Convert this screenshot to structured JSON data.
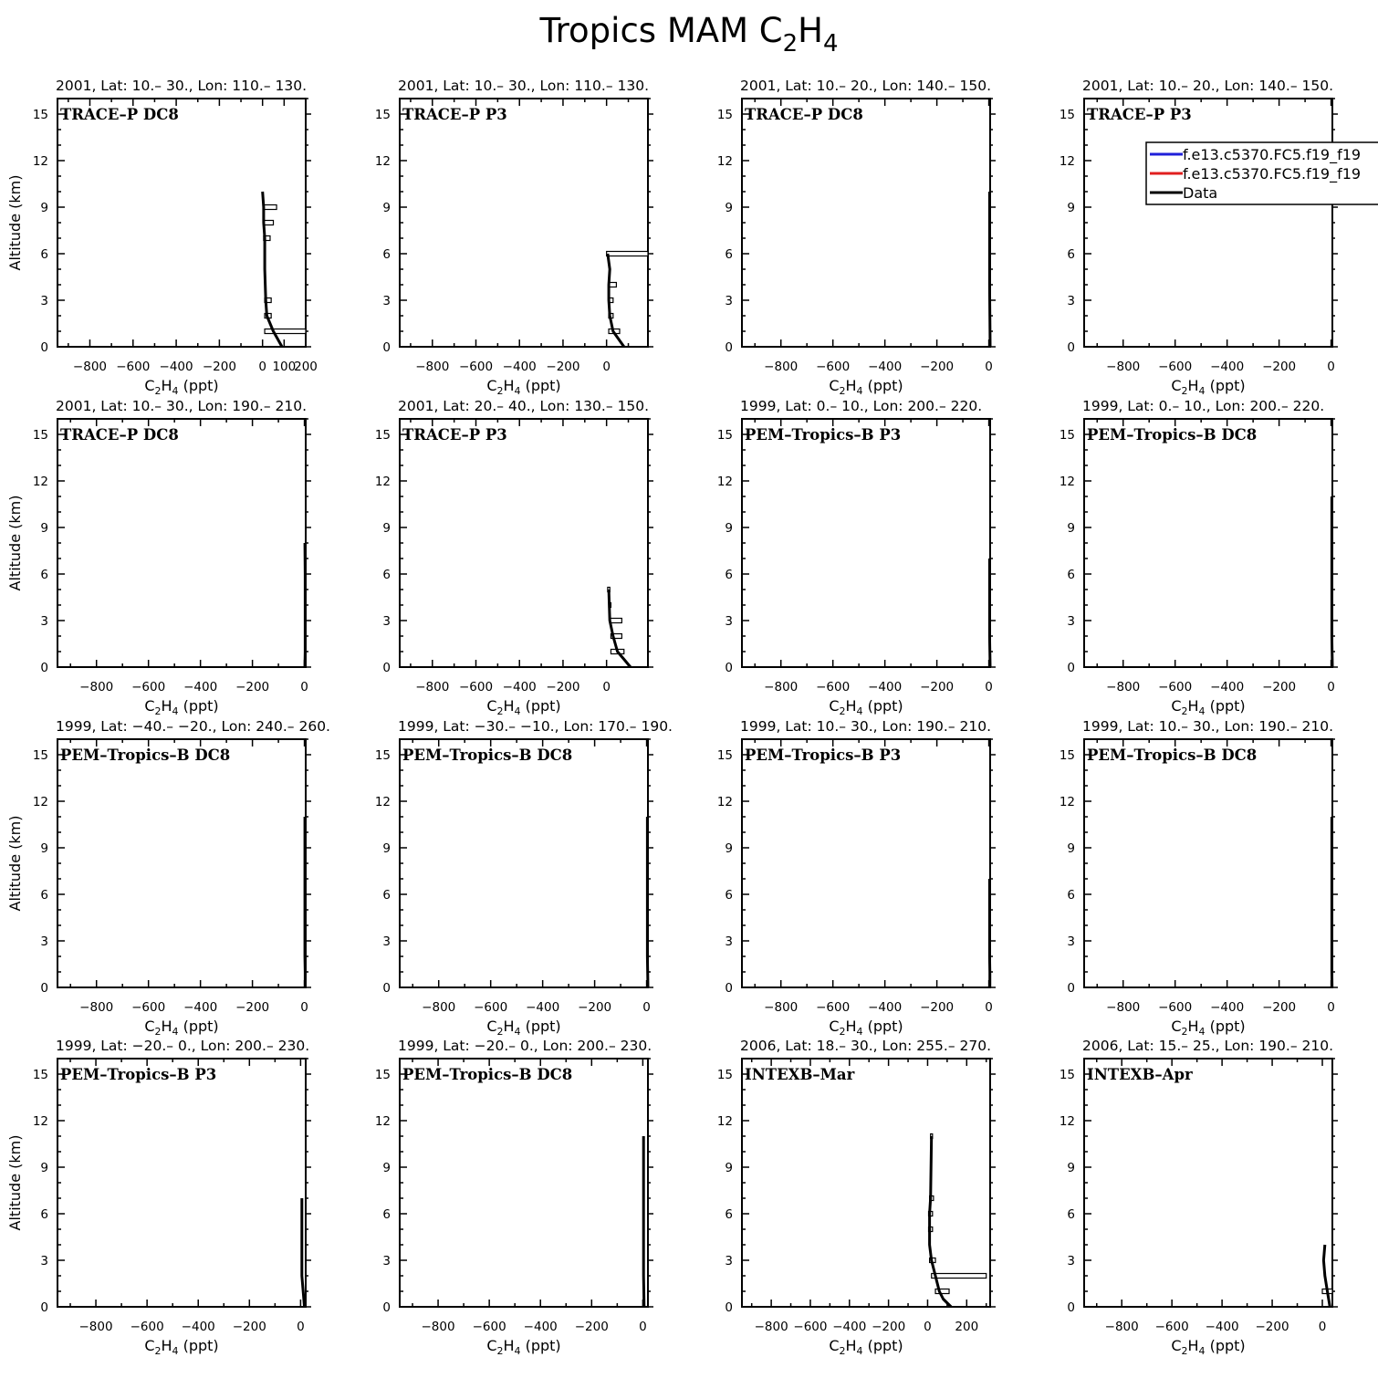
{
  "figure": {
    "title": {
      "main": "Tropics MAM C",
      "sub1": "2",
      "mid": "H",
      "sub2": "4"
    }
  },
  "legend": {
    "entries": [
      {
        "label": "f.e13.c5370.FC5.f19_f19",
        "color": "#1f1fd9"
      },
      {
        "label": "f.e13.c5370.FC5.f19_f19",
        "color": "#e01f1f"
      },
      {
        "label": "Data",
        "color": "#000000"
      }
    ]
  },
  "colors": {
    "data": "#000000",
    "axes": "#000000"
  },
  "chart_data": [
    {
      "type": "line",
      "title": "2001, Lat: 10.– 30., Lon: 110.– 130.",
      "campaign": "TRACE–P DC8",
      "xlabel": {
        "main": "C",
        "sub1": "2",
        "mid": "H",
        "sub2": "4",
        "unit": " (ppt)"
      },
      "ylabel": "Altitude (km)",
      "xlim": [
        -950,
        200
      ],
      "ylim": [
        0,
        16
      ],
      "xticks": [
        -800,
        -600,
        -400,
        -200,
        0,
        100,
        200
      ],
      "xticklabels": [
        "−800",
        "−600",
        "−400",
        "−200",
        "0",
        "100",
        "200"
      ],
      "yticks": [
        0,
        3,
        6,
        9,
        12,
        15
      ],
      "series": [
        {
          "name": "Data",
          "x": [
            90,
            70,
            50,
            20,
            15,
            10,
            10,
            10,
            5,
            5,
            0
          ],
          "y": [
            0,
            0.5,
            1,
            2,
            3,
            5,
            6,
            7,
            8,
            9,
            10
          ]
        }
      ],
      "bars": [
        {
          "y": 1,
          "min": 10,
          "max": 200
        },
        {
          "y": 2,
          "min": 10,
          "max": 40
        },
        {
          "y": 3,
          "min": 10,
          "max": 40
        },
        {
          "y": 7,
          "min": 5,
          "max": 35
        },
        {
          "y": 8,
          "min": 5,
          "max": 50
        },
        {
          "y": 9,
          "min": 5,
          "max": 65
        }
      ]
    },
    {
      "type": "line",
      "title": "2001, Lat: 10.– 30., Lon: 110.– 130.",
      "campaign": "TRACE–P P3",
      "xlabel": {
        "main": "C",
        "sub1": "2",
        "mid": "H",
        "sub2": "4",
        "unit": " (ppt)"
      },
      "ylabel": "",
      "xlim": [
        -950,
        190
      ],
      "ylim": [
        0,
        16
      ],
      "xticks": [
        -800,
        -600,
        -400,
        -200,
        0
      ],
      "xticklabels": [
        "−800",
        "−600",
        "−400",
        "−200",
        "0"
      ],
      "yticks": [
        0,
        3,
        6,
        9,
        12,
        15
      ],
      "series": [
        {
          "name": "Data",
          "x": [
            80,
            55,
            30,
            15,
            10,
            10,
            15,
            5
          ],
          "y": [
            0,
            0.5,
            1,
            2,
            3,
            4,
            5,
            6
          ]
        }
      ],
      "bars": [
        {
          "y": 1,
          "min": 10,
          "max": 60
        },
        {
          "y": 2,
          "min": 10,
          "max": 30
        },
        {
          "y": 3,
          "min": 10,
          "max": 30
        },
        {
          "y": 4,
          "min": 10,
          "max": 45
        },
        {
          "y": 6,
          "min": 0,
          "max": 190
        }
      ]
    },
    {
      "type": "line",
      "title": "2001, Lat: 10.– 20., Lon: 140.– 150.",
      "campaign": "TRACE–P DC8",
      "xlabel": {
        "main": "C",
        "sub1": "2",
        "mid": "H",
        "sub2": "4",
        "unit": " (ppt)"
      },
      "ylabel": "",
      "xlim": [
        -950,
        5
      ],
      "ylim": [
        0,
        16
      ],
      "xticks": [
        -800,
        -600,
        -400,
        -200,
        0
      ],
      "xticklabels": [
        "−800",
        "−600",
        "−400",
        "−200",
        "0"
      ],
      "yticks": [
        0,
        3,
        6,
        9,
        12,
        15
      ],
      "series": [
        {
          "name": "Data",
          "x": [
            5,
            4,
            3,
            3,
            3,
            3,
            3
          ],
          "y": [
            0,
            2,
            4,
            6,
            8,
            9,
            10
          ]
        }
      ],
      "bars": []
    },
    {
      "type": "line",
      "title": "2001, Lat: 10.– 20., Lon: 140.– 150.",
      "campaign": "TRACE–P P3",
      "xlabel": {
        "main": "C",
        "sub1": "2",
        "mid": "H",
        "sub2": "4",
        "unit": " (ppt)"
      },
      "ylabel": "",
      "xlim": [
        -950,
        5
      ],
      "ylim": [
        0,
        16
      ],
      "xticks": [
        -800,
        -600,
        -400,
        -200,
        0
      ],
      "xticklabels": [
        "−800",
        "−600",
        "−400",
        "−200",
        "0"
      ],
      "yticks": [
        0,
        3,
        6,
        9,
        12,
        15
      ],
      "series": [],
      "bars": [],
      "has_legend": true
    },
    {
      "type": "line",
      "title": "2001, Lat: 10.– 30., Lon: 190.– 210.",
      "campaign": "TRACE–P DC8",
      "xlabel": {
        "main": "C",
        "sub1": "2",
        "mid": "H",
        "sub2": "4",
        "unit": " (ppt)"
      },
      "ylabel": "Altitude (km)",
      "xlim": [
        -950,
        5
      ],
      "ylim": [
        0,
        16
      ],
      "xticks": [
        -800,
        -600,
        -400,
        -200,
        0
      ],
      "xticklabels": [
        "−800",
        "−600",
        "−400",
        "−200",
        "0"
      ],
      "yticks": [
        0,
        3,
        6,
        9,
        12,
        15
      ],
      "series": [
        {
          "name": "Data",
          "x": [
            2,
            3,
            3,
            3,
            3,
            3,
            3,
            2
          ],
          "y": [
            0,
            1,
            2,
            3,
            4,
            5,
            6,
            8
          ]
        }
      ],
      "bars": []
    },
    {
      "type": "line",
      "title": "2001, Lat: 20.– 40., Lon: 130.– 150.",
      "campaign": "TRACE–P P3",
      "xlabel": {
        "main": "C",
        "sub1": "2",
        "mid": "H",
        "sub2": "4",
        "unit": " (ppt)"
      },
      "ylabel": "",
      "xlim": [
        -950,
        190
      ],
      "ylim": [
        0,
        16
      ],
      "xticks": [
        -800,
        -600,
        -400,
        -200,
        0
      ],
      "xticklabels": [
        "−800",
        "−600",
        "−400",
        "−200",
        "0"
      ],
      "yticks": [
        0,
        3,
        6,
        9,
        12,
        15
      ],
      "series": [
        {
          "name": "Data",
          "x": [
            110,
            80,
            50,
            30,
            15,
            10
          ],
          "y": [
            0,
            0.5,
            1,
            2,
            3,
            5
          ]
        }
      ],
      "bars": [
        {
          "y": 1,
          "min": 20,
          "max": 80
        },
        {
          "y": 2,
          "min": 20,
          "max": 70
        },
        {
          "y": 3,
          "min": 15,
          "max": 70
        },
        {
          "y": 4,
          "min": 10,
          "max": 20
        },
        {
          "y": 5,
          "min": 5,
          "max": 15
        }
      ]
    },
    {
      "type": "line",
      "title": "1999, Lat: 0.– 10., Lon: 200.– 220.",
      "campaign": "PEM–Tropics–B P3",
      "xlabel": {
        "main": "C",
        "sub1": "2",
        "mid": "H",
        "sub2": "4",
        "unit": " (ppt)"
      },
      "ylabel": "",
      "xlim": [
        -950,
        5
      ],
      "ylim": [
        0,
        16
      ],
      "xticks": [
        -800,
        -600,
        -400,
        -200,
        0
      ],
      "xticklabels": [
        "−800",
        "−600",
        "−400",
        "−200",
        "0"
      ],
      "yticks": [
        0,
        3,
        6,
        9,
        12,
        15
      ],
      "series": [
        {
          "name": "Data",
          "x": [
            5,
            4,
            3,
            3,
            3,
            3,
            3,
            3
          ],
          "y": [
            0,
            1,
            2,
            3,
            4,
            5,
            6,
            7
          ]
        }
      ],
      "bars": []
    },
    {
      "type": "line",
      "title": "1999, Lat: 0.– 10., Lon: 200.– 220.",
      "campaign": "PEM–Tropics–B DC8",
      "xlabel": {
        "main": "C",
        "sub1": "2",
        "mid": "H",
        "sub2": "4",
        "unit": " (ppt)"
      },
      "ylabel": "",
      "xlim": [
        -950,
        5
      ],
      "ylim": [
        0,
        16
      ],
      "xticks": [
        -800,
        -600,
        -400,
        -200,
        0
      ],
      "xticklabels": [
        "−800",
        "−600",
        "−400",
        "−200",
        "0"
      ],
      "yticks": [
        0,
        3,
        6,
        9,
        12,
        15
      ],
      "series": [
        {
          "name": "Data",
          "x": [
            5,
            4,
            3,
            3,
            3,
            3,
            3,
            3,
            3,
            3,
            3
          ],
          "y": [
            0,
            1,
            2,
            3,
            4,
            5,
            6,
            7,
            8,
            9,
            11
          ]
        }
      ],
      "bars": []
    },
    {
      "type": "line",
      "title": "1999, Lat: −40.– −20., Lon: 240.– 260.",
      "campaign": "PEM–Tropics–B DC8",
      "xlabel": {
        "main": "C",
        "sub1": "2",
        "mid": "H",
        "sub2": "4",
        "unit": " (ppt)"
      },
      "ylabel": "Altitude (km)",
      "xlim": [
        -950,
        5
      ],
      "ylim": [
        0,
        16
      ],
      "xticks": [
        -800,
        -600,
        -400,
        -200,
        0
      ],
      "xticklabels": [
        "−800",
        "−600",
        "−400",
        "−200",
        "0"
      ],
      "yticks": [
        0,
        3,
        6,
        9,
        12,
        15
      ],
      "series": [
        {
          "name": "Data",
          "x": [
            3,
            3,
            2,
            2,
            2,
            2,
            2,
            2,
            2,
            2,
            2
          ],
          "y": [
            0,
            1,
            2,
            3,
            4,
            5,
            6,
            7,
            8,
            9,
            11
          ]
        }
      ],
      "bars": []
    },
    {
      "type": "line",
      "title": "1999, Lat: −30.– −10., Lon: 170.– 190.",
      "campaign": "PEM–Tropics–B DC8",
      "xlabel": {
        "main": "C",
        "sub1": "2",
        "mid": "H",
        "sub2": "4",
        "unit": " (ppt)"
      },
      "ylabel": "",
      "xlim": [
        -950,
        5
      ],
      "ylim": [
        0,
        16
      ],
      "xticks": [
        -800,
        -600,
        -400,
        -200,
        0
      ],
      "xticklabels": [
        "−800",
        "−600",
        "−400",
        "−200",
        "0"
      ],
      "yticks": [
        0,
        3,
        6,
        9,
        12,
        15
      ],
      "series": [
        {
          "name": "Data",
          "x": [
            5,
            4,
            3,
            3,
            3,
            3,
            3,
            3,
            3,
            3,
            3
          ],
          "y": [
            0,
            1,
            2,
            3,
            4,
            5,
            6,
            7,
            8,
            9,
            11
          ]
        }
      ],
      "bars": []
    },
    {
      "type": "line",
      "title": "1999, Lat: 10.– 30., Lon: 190.– 210.",
      "campaign": "PEM–Tropics–B P3",
      "xlabel": {
        "main": "C",
        "sub1": "2",
        "mid": "H",
        "sub2": "4",
        "unit": " (ppt)"
      },
      "ylabel": "",
      "xlim": [
        -950,
        5
      ],
      "ylim": [
        0,
        16
      ],
      "xticks": [
        -800,
        -600,
        -400,
        -200,
        0
      ],
      "xticklabels": [
        "−800",
        "−600",
        "−400",
        "−200",
        "0"
      ],
      "yticks": [
        0,
        3,
        6,
        9,
        12,
        15
      ],
      "series": [
        {
          "name": "Data",
          "x": [
            4,
            4,
            3,
            3,
            3,
            3,
            3,
            3
          ],
          "y": [
            0,
            1,
            2,
            3,
            4,
            5,
            6,
            7
          ]
        }
      ],
      "bars": []
    },
    {
      "type": "line",
      "title": "1999, Lat: 10.– 30., Lon: 190.– 210.",
      "campaign": "PEM–Tropics–B DC8",
      "xlabel": {
        "main": "C",
        "sub1": "2",
        "mid": "H",
        "sub2": "4",
        "unit": " (ppt)"
      },
      "ylabel": "",
      "xlim": [
        -950,
        5
      ],
      "ylim": [
        0,
        16
      ],
      "xticks": [
        -800,
        -600,
        -400,
        -200,
        0
      ],
      "xticklabels": [
        "−800",
        "−600",
        "−400",
        "−200",
        "0"
      ],
      "yticks": [
        0,
        3,
        6,
        9,
        12,
        15
      ],
      "series": [
        {
          "name": "Data",
          "x": [
            4,
            3,
            3,
            3,
            3,
            3,
            3,
            3,
            3,
            3,
            3
          ],
          "y": [
            0,
            1,
            2,
            3,
            4,
            5,
            6,
            7,
            8,
            9,
            11
          ]
        }
      ],
      "bars": []
    },
    {
      "type": "line",
      "title": "1999, Lat: −20.– 0., Lon: 200.– 230.",
      "campaign": "PEM–Tropics–B P3",
      "xlabel": {
        "main": "C",
        "sub1": "2",
        "mid": "H",
        "sub2": "4",
        "unit": " (ppt)"
      },
      "ylabel": "Altitude (km)",
      "xlim": [
        -950,
        20
      ],
      "ylim": [
        0,
        16
      ],
      "xticks": [
        -800,
        -600,
        -400,
        -200,
        0
      ],
      "xticklabels": [
        "−800",
        "−600",
        "−400",
        "−200",
        "0"
      ],
      "yticks": [
        0,
        3,
        6,
        9,
        12,
        15
      ],
      "series": [
        {
          "name": "Data",
          "x": [
            15,
            10,
            5,
            5,
            5,
            5,
            5,
            5
          ],
          "y": [
            0,
            1,
            2,
            3,
            4,
            5,
            6,
            7
          ]
        }
      ],
      "bars": []
    },
    {
      "type": "line",
      "title": "1999, Lat: −20.– 0., Lon: 200.– 230.",
      "campaign": "PEM–Tropics–B DC8",
      "xlabel": {
        "main": "C",
        "sub1": "2",
        "mid": "H",
        "sub2": "4",
        "unit": " (ppt)"
      },
      "ylabel": "",
      "xlim": [
        -950,
        20
      ],
      "ylim": [
        0,
        16
      ],
      "xticks": [
        -800,
        -600,
        -400,
        -200,
        0
      ],
      "xticklabels": [
        "−800",
        "−600",
        "−400",
        "−200",
        "0"
      ],
      "yticks": [
        0,
        3,
        6,
        9,
        12,
        15
      ],
      "series": [
        {
          "name": "Data",
          "x": [
            5,
            4,
            3,
            3,
            3,
            3,
            3,
            3,
            3,
            3,
            3
          ],
          "y": [
            0,
            1,
            2,
            3,
            4,
            5,
            6,
            7,
            8,
            9,
            11
          ]
        }
      ],
      "bars": []
    },
    {
      "type": "line",
      "title": "2006, Lat: 18.– 30., Lon: 255.– 270.",
      "campaign": "INTEXB–Mar",
      "xlabel": {
        "main": "C",
        "sub1": "2",
        "mid": "H",
        "sub2": "4",
        "unit": " (ppt)"
      },
      "ylabel": "",
      "xlim": [
        -950,
        320
      ],
      "ylim": [
        0,
        16
      ],
      "xticks": [
        -800,
        -600,
        -400,
        -200,
        0,
        200
      ],
      "xticklabels": [
        "−800",
        "−600",
        "−400",
        "−200",
        "0",
        "200"
      ],
      "yticks": [
        0,
        3,
        6,
        9,
        12,
        15
      ],
      "series": [
        {
          "name": "Data",
          "x": [
            120,
            80,
            60,
            40,
            20,
            10,
            10,
            10,
            15,
            20
          ],
          "y": [
            0,
            0.5,
            1,
            2,
            3,
            4,
            5,
            6,
            7,
            11
          ]
        }
      ],
      "bars": [
        {
          "y": 1,
          "min": 40,
          "max": 110
        },
        {
          "y": 2,
          "min": 20,
          "max": 300
        },
        {
          "y": 3,
          "min": 10,
          "max": 40
        },
        {
          "y": 5,
          "min": 5,
          "max": 25
        },
        {
          "y": 6,
          "min": 5,
          "max": 25
        },
        {
          "y": 7,
          "min": 10,
          "max": 30
        },
        {
          "y": 11,
          "min": 15,
          "max": 25
        }
      ]
    },
    {
      "type": "line",
      "title": "2006, Lat: 15.– 25., Lon: 190.– 210.",
      "campaign": "INTEXB–Apr",
      "xlabel": {
        "main": "C",
        "sub1": "2",
        "mid": "H",
        "sub2": "4",
        "unit": " (ppt)"
      },
      "ylabel": "",
      "xlim": [
        -950,
        40
      ],
      "ylim": [
        0,
        16
      ],
      "xticks": [
        -800,
        -600,
        -400,
        -200,
        0
      ],
      "xticklabels": [
        "−800",
        "−600",
        "−400",
        "−200",
        "0"
      ],
      "yticks": [
        0,
        3,
        6,
        9,
        12,
        15
      ],
      "series": [
        {
          "name": "Data",
          "x": [
            30,
            20,
            10,
            5,
            10
          ],
          "y": [
            0,
            1,
            2,
            3,
            4
          ]
        }
      ],
      "bars": [
        {
          "y": 1,
          "min": 0,
          "max": 40
        }
      ]
    }
  ]
}
